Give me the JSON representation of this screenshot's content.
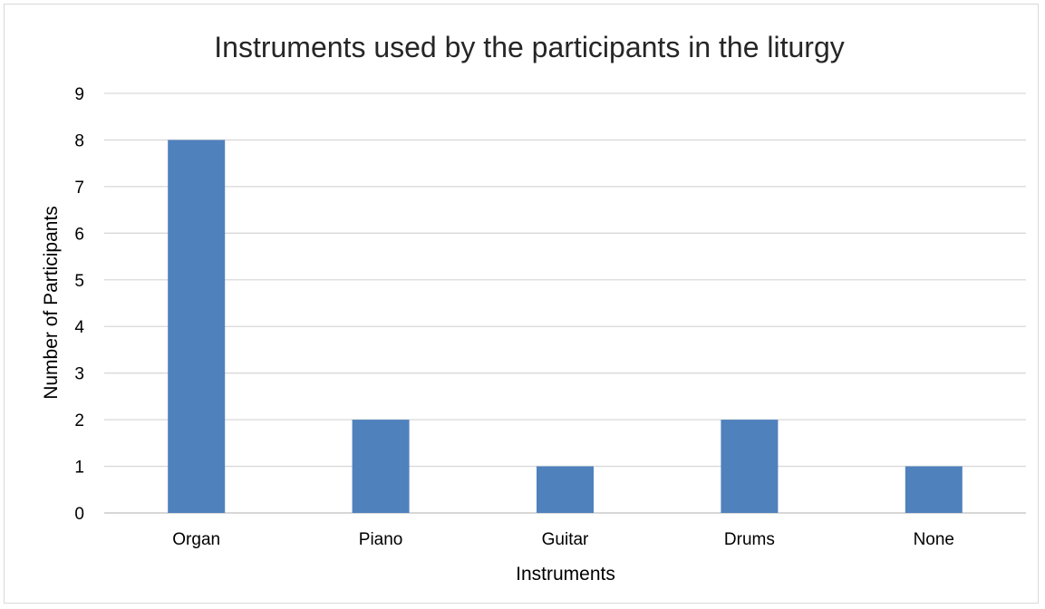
{
  "chart_data": {
    "type": "bar",
    "title": "Instruments used by the participants in the liturgy",
    "xlabel": "Instruments",
    "ylabel": "Number of Participants",
    "categories": [
      "Organ",
      "Piano",
      "Guitar",
      "Drums",
      "None"
    ],
    "values": [
      8,
      2,
      1,
      2,
      1
    ],
    "ylim": [
      0,
      9
    ],
    "yticks": [
      "0",
      "1",
      "2",
      "3",
      "4",
      "5",
      "6",
      "7",
      "8",
      "9"
    ],
    "grid": true,
    "legend": "none",
    "colors": {
      "bar": "#4f81bd",
      "grid": "#d9d9d9",
      "axis": "#bfbfbf"
    }
  }
}
